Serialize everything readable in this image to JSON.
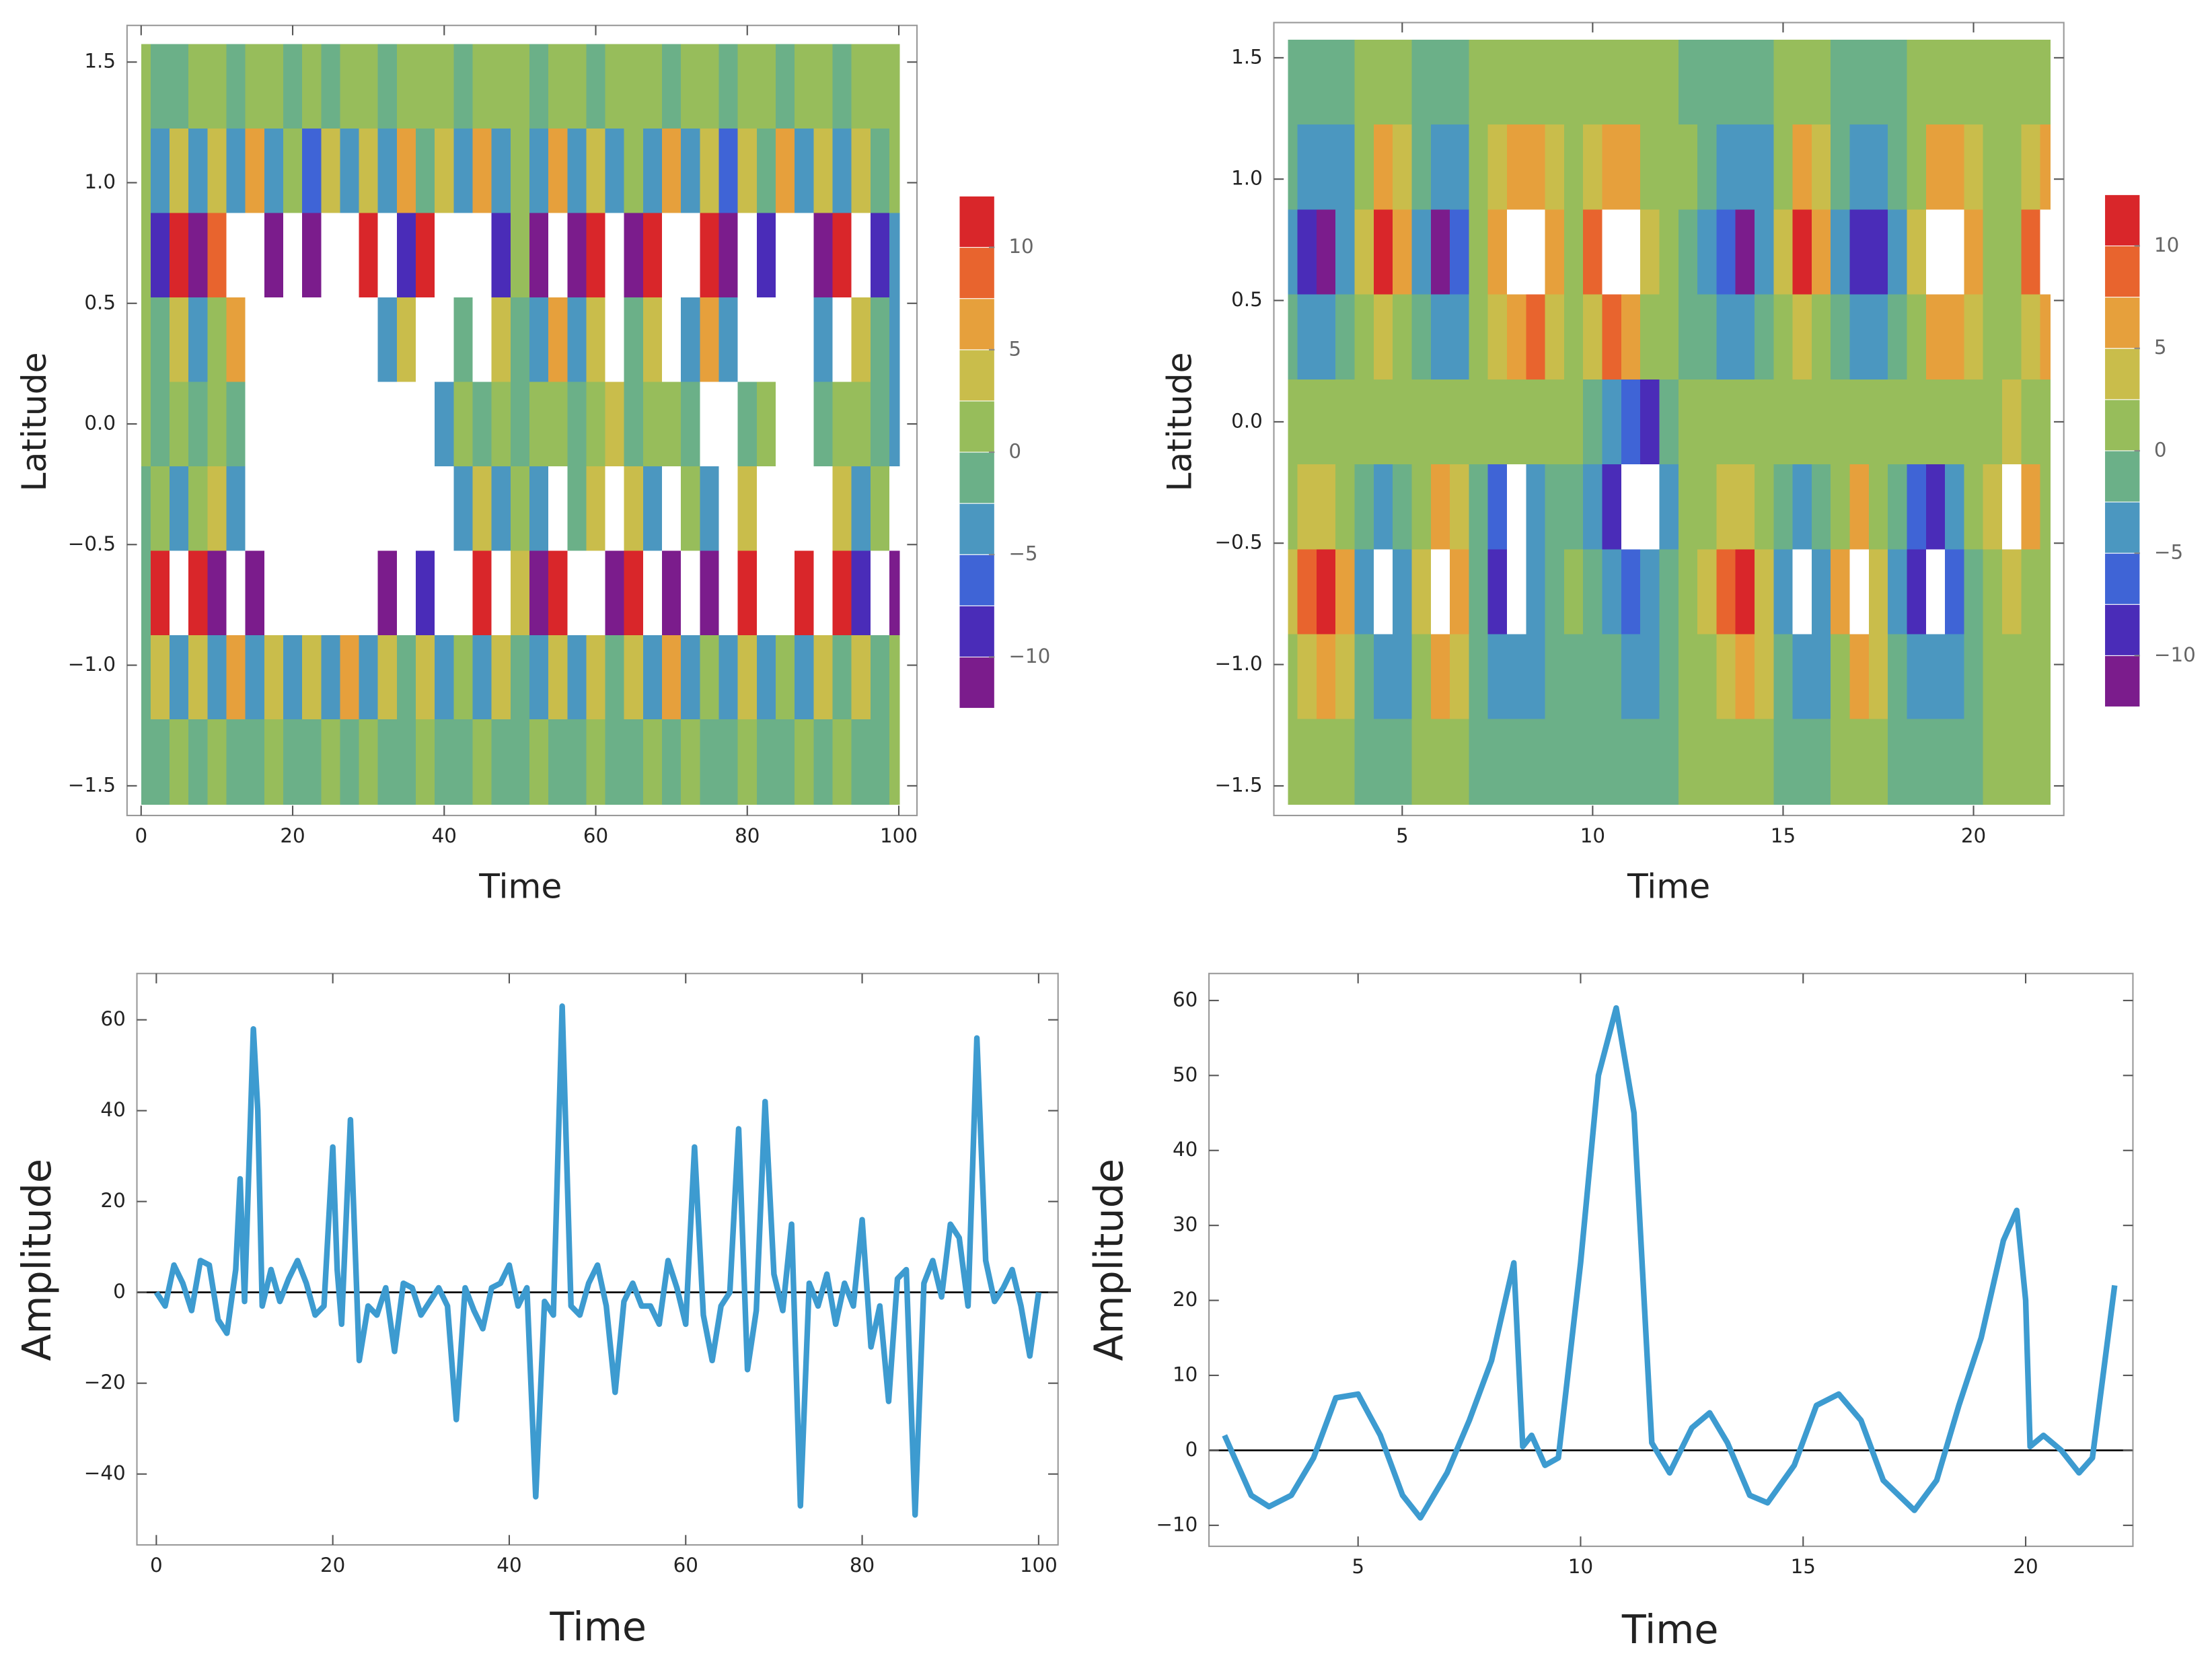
{
  "chart_data": [
    {
      "type": "contour",
      "x_label": "Time",
      "y_label": "Latitude",
      "xlim": [
        -1.86,
        102.4
      ],
      "ylim": [
        -1.623,
        1.652
      ],
      "xticks": [
        0,
        20,
        40,
        60,
        80,
        100
      ],
      "yticks": [
        {
          "value": -1.5,
          "label": "−1.5"
        },
        {
          "value": -1.0,
          "label": "−1.0"
        },
        {
          "value": -0.5,
          "label": "−0.5"
        },
        {
          "value": 0,
          "label": "0.0"
        },
        0.5,
        {
          "value": 1.0,
          "label": "1.0"
        },
        1.5
      ],
      "x": [
        0,
        2.5,
        5,
        7.5,
        10,
        12.5,
        15,
        17.5,
        20,
        22.5,
        25,
        27.5,
        30,
        32.5,
        35,
        37.5,
        40,
        42.5,
        45,
        47.5,
        50,
        52.5,
        55,
        57.5,
        60,
        62.5,
        65,
        67.5,
        70,
        72.5,
        75,
        77.5,
        80,
        82.5,
        85,
        87.5,
        90,
        92.5,
        95,
        97.5,
        100
      ],
      "y": [
        1.4,
        1.05,
        0.7,
        0.35,
        0,
        -0.35,
        -0.7,
        -1.05,
        -1.4
      ],
      "z": [
        [
          1,
          -1,
          -1,
          1,
          1,
          -1,
          1,
          1,
          -1,
          1,
          -1,
          1,
          1,
          -1,
          1,
          1,
          1,
          -1,
          1,
          1,
          1,
          -1,
          1,
          1,
          -1,
          1,
          1,
          1,
          -1,
          1,
          1,
          -1,
          1,
          1,
          -1,
          1,
          1,
          -1,
          1,
          1,
          1
        ],
        [
          1,
          -3,
          4,
          -5,
          3,
          -4,
          5,
          -3,
          2,
          -6,
          4,
          -4,
          3,
          -5,
          6,
          -2,
          3,
          -4,
          5,
          -3,
          1,
          -4,
          6,
          -3,
          4,
          -5,
          2,
          -3,
          5,
          -4,
          3,
          -6,
          4,
          -2,
          5,
          -3,
          4,
          -5,
          3,
          -2,
          1
        ],
        [
          1,
          -10,
          12,
          -12,
          9,
          14,
          14,
          -11,
          14,
          -12,
          13,
          -14,
          12,
          14,
          -9,
          12,
          14,
          -13,
          14,
          -10,
          2,
          -11,
          13,
          -12,
          11,
          14,
          -12,
          10,
          14,
          -13,
          12,
          -11,
          14,
          -10,
          13,
          14,
          -12,
          11,
          14,
          -10,
          -3
        ],
        [
          1,
          -2,
          4,
          -3,
          2,
          5,
          14,
          14,
          14,
          14,
          14,
          14,
          14,
          -3,
          4,
          14,
          14,
          -2,
          14,
          3,
          -1,
          -4,
          5,
          -3,
          4,
          14,
          -2,
          3,
          14,
          -4,
          5,
          -3,
          14,
          14,
          14,
          14,
          -3,
          14,
          4,
          -2,
          -5
        ],
        [
          0,
          -1,
          1,
          -1,
          2,
          -2,
          14,
          14,
          14,
          14,
          14,
          -14,
          -14,
          14,
          14,
          14,
          -3,
          1,
          -2,
          1,
          -1,
          1,
          2,
          -1,
          1,
          3,
          -2,
          1,
          2,
          -1,
          14,
          14,
          -2,
          1,
          14,
          14,
          -2,
          1,
          2,
          -1,
          -4
        ],
        [
          -1,
          2,
          -3,
          1,
          3,
          -4,
          14,
          14,
          14,
          14,
          14,
          14,
          -14,
          14,
          14,
          14,
          14,
          -5,
          3,
          -4,
          2,
          -3,
          14,
          -2,
          3,
          14,
          4,
          -3,
          14,
          2,
          -4,
          14,
          3,
          14,
          14,
          14,
          14,
          4,
          -3,
          2,
          -14
        ],
        [
          -1,
          12,
          -14,
          11,
          -12,
          14,
          -11,
          14,
          14,
          -13,
          14,
          14,
          14,
          -12,
          14,
          -10,
          14,
          -13,
          11,
          -14,
          3,
          -11,
          12,
          -14,
          14,
          -12,
          10,
          14,
          -12,
          14,
          -11,
          -14,
          12,
          14,
          -13,
          11,
          -14,
          12,
          -10,
          14,
          -12
        ],
        [
          -1,
          4,
          -5,
          3,
          -4,
          5,
          -3,
          4,
          -5,
          3,
          -4,
          5,
          -3,
          4,
          -2,
          3,
          -4,
          2,
          -3,
          4,
          -1,
          -3,
          4,
          -5,
          3,
          -2,
          4,
          -3,
          5,
          -4,
          2,
          -5,
          3,
          -4,
          2,
          -3,
          4,
          -2,
          3,
          -2,
          1
        ],
        [
          -1,
          -1,
          1,
          -1,
          1,
          -1,
          -1,
          1,
          -1,
          -1,
          1,
          -1,
          1,
          -1,
          -1,
          1,
          -1,
          -1,
          1,
          -1,
          -1,
          1,
          -1,
          -1,
          1,
          -1,
          -1,
          1,
          -1,
          1,
          -1,
          -1,
          1,
          -1,
          -1,
          1,
          -1,
          1,
          -1,
          -1,
          1
        ]
      ],
      "levels": [
        -12.5,
        -10,
        -7.5,
        -5,
        -2.5,
        0,
        2.5,
        5,
        7.5,
        10,
        12.5
      ],
      "colors": [
        "#7b1c8c",
        "#4a2cb8",
        "#3f64d6",
        "#4b97c0",
        "#6bb088",
        "#97bd5b",
        "#c9bd4b",
        "#e6a03c",
        "#e8642e",
        "#d9262a"
      ],
      "colorbar_ticks": [
        {
          "value": -10,
          "label": "−10"
        },
        {
          "value": -5,
          "label": "−5"
        },
        0,
        5,
        10
      ]
    },
    {
      "type": "contour",
      "x_label": "Time",
      "y_label": "Latitude",
      "xlim": [
        1.63,
        22.37
      ],
      "ylim": [
        -1.622,
        1.645
      ],
      "xticks": [
        5,
        10,
        15,
        20
      ],
      "yticks": [
        {
          "value": -1.5,
          "label": "−1.5"
        },
        {
          "value": -1.0,
          "label": "−1.0"
        },
        {
          "value": -0.5,
          "label": "−0.5"
        },
        {
          "value": 0,
          "label": "0.0"
        },
        0.5,
        {
          "value": 1.0,
          "label": "1.0"
        },
        1.5
      ],
      "x": [
        2,
        2.5,
        3,
        3.5,
        4,
        4.5,
        5,
        5.5,
        6,
        6.5,
        7,
        7.5,
        8,
        8.5,
        9,
        9.5,
        10,
        10.5,
        11,
        11.5,
        12,
        12.5,
        13,
        13.5,
        14,
        14.5,
        15,
        15.5,
        16,
        16.5,
        17,
        17.5,
        18,
        18.5,
        19,
        19.5,
        20,
        20.5,
        21,
        21.5,
        22
      ],
      "y": [
        1.4,
        1.05,
        0.7,
        0.35,
        0,
        -0.35,
        -0.7,
        -1.05,
        -1.4
      ],
      "z": [
        [
          -1,
          -1,
          -1,
          -1,
          1,
          1,
          1,
          -1,
          -1,
          -1,
          1,
          1,
          1,
          1,
          1,
          1,
          1,
          1,
          1,
          1,
          1,
          -1,
          -1,
          -1,
          -1,
          -1,
          1,
          1,
          1,
          -1,
          -1,
          -1,
          -1,
          1,
          1,
          1,
          1,
          1,
          1,
          1,
          1
        ],
        [
          -2,
          -4,
          -5,
          -3,
          2,
          5,
          3,
          -2,
          -5,
          -4,
          0,
          3,
          6,
          7,
          3,
          1,
          4,
          7,
          6,
          2,
          1,
          0,
          -2,
          -4,
          -5,
          -3,
          2,
          5,
          3,
          -2,
          -4,
          -5,
          -2,
          2,
          6,
          7,
          3,
          1,
          1,
          4,
          6
        ],
        [
          -3,
          -8,
          -11,
          -5,
          4,
          11,
          5,
          -3,
          -11,
          -7,
          0,
          6,
          13,
          14,
          5,
          1,
          8,
          14,
          13,
          4,
          1,
          -1,
          -4,
          -7,
          -11,
          -5,
          3,
          11,
          6,
          -3,
          -9,
          -10,
          -4,
          4,
          13,
          14,
          6,
          1,
          1,
          8,
          13
        ],
        [
          -1,
          -3,
          -4,
          -2,
          2,
          4,
          2,
          -1,
          -4,
          -3,
          0,
          3,
          6,
          8,
          3,
          1,
          4,
          8,
          6,
          2,
          0,
          -1,
          -2,
          -3,
          -4,
          -2,
          1,
          4,
          2,
          -1,
          -3,
          -4,
          -2,
          2,
          6,
          7,
          3,
          1,
          1,
          3,
          6
        ],
        [
          1,
          1,
          1,
          1,
          1,
          1,
          1,
          1,
          1,
          1,
          1,
          1,
          1,
          1,
          1,
          0,
          -1,
          -3,
          -6,
          -8,
          -2,
          1,
          1,
          1,
          1,
          1,
          1,
          1,
          1,
          1,
          1,
          1,
          1,
          1,
          1,
          1,
          1,
          2,
          3,
          2,
          1
        ],
        [
          1,
          3,
          4,
          2,
          -2,
          -5,
          -2,
          1,
          5,
          3,
          -1,
          -6,
          -13,
          -4,
          -1,
          -2,
          -5,
          -10,
          -14,
          -13,
          -3,
          1,
          2,
          3,
          4,
          2,
          -2,
          -5,
          -2,
          2,
          5,
          2,
          -2,
          -6,
          -9,
          -4,
          0,
          4,
          13,
          5,
          1
        ],
        [
          3,
          8,
          11,
          5,
          -4,
          -14,
          -5,
          3,
          13,
          6,
          -2,
          -10,
          -14,
          -5,
          -1,
          0,
          -2,
          -4,
          -7,
          -5,
          -1,
          1,
          4,
          8,
          11,
          4,
          -4,
          -14,
          -4,
          5,
          13,
          4,
          -4,
          -10,
          -14,
          -6,
          -1,
          1,
          3,
          1,
          0
        ],
        [
          2,
          4,
          5,
          3,
          -2,
          -5,
          -3,
          2,
          6,
          3,
          -1,
          -4,
          -5,
          -3,
          -1,
          -1,
          -1,
          -2,
          -3,
          -3,
          -1,
          1,
          2,
          4,
          5,
          3,
          -2,
          -5,
          -3,
          2,
          5,
          3,
          -2,
          -4,
          -5,
          -3,
          -1,
          1,
          2,
          1,
          0
        ],
        [
          1,
          1,
          1,
          1,
          -1,
          -1,
          -1,
          1,
          1,
          1,
          -1,
          -1,
          -1,
          -1,
          -1,
          -1,
          -1,
          -1,
          -1,
          -1,
          -1,
          1,
          1,
          1,
          1,
          1,
          -1,
          -1,
          -1,
          1,
          1,
          1,
          -1,
          -1,
          -1,
          -1,
          -1,
          1,
          1,
          1,
          1
        ]
      ],
      "levels": [
        -12.5,
        -10,
        -7.5,
        -5,
        -2.5,
        0,
        2.5,
        5,
        7.5,
        10,
        12.5
      ],
      "colors": [
        "#7b1c8c",
        "#4a2cb8",
        "#3f64d6",
        "#4b97c0",
        "#6bb088",
        "#97bd5b",
        "#c9bd4b",
        "#e6a03c",
        "#e8642e",
        "#d9262a"
      ],
      "colorbar_ticks": [
        {
          "value": -10,
          "label": "−10"
        },
        {
          "value": -5,
          "label": "−5"
        },
        0,
        5,
        10
      ]
    },
    {
      "type": "line",
      "x_label": "Time",
      "y_label": "Amplitude",
      "xlim": [
        -2.2,
        102.2
      ],
      "ylim": [
        -55.6,
        70.2
      ],
      "xticks": [
        0,
        20,
        40,
        60,
        80,
        100
      ],
      "yticks": [
        {
          "value": -40,
          "label": "−40"
        },
        {
          "value": -20,
          "label": "−20"
        },
        0,
        20,
        40,
        60
      ],
      "zero_line": true,
      "color": "#3d9bd0",
      "x": [
        0,
        1,
        2,
        3,
        4,
        5,
        6,
        7,
        8,
        9,
        9.5,
        10,
        11,
        11.5,
        12,
        13,
        14,
        15,
        16,
        17,
        18,
        19,
        20,
        20.5,
        21,
        22,
        23,
        24,
        25,
        26,
        27,
        28,
        29,
        30,
        31,
        32,
        33,
        34,
        35,
        36,
        37,
        38,
        39,
        40,
        41,
        42,
        43,
        44,
        45,
        46,
        47,
        48,
        49,
        50,
        51,
        52,
        53,
        54,
        55,
        56,
        57,
        58,
        59,
        60,
        61,
        62,
        63,
        64,
        65,
        66,
        67,
        68,
        69,
        70,
        71,
        72,
        73,
        74,
        75,
        76,
        77,
        78,
        79,
        80,
        81,
        82,
        83,
        84,
        85,
        86,
        87,
        88,
        89,
        90,
        91,
        92,
        93,
        94,
        95,
        96,
        97,
        98,
        99,
        100
      ],
      "values": [
        0,
        -3,
        6,
        2,
        -4,
        7,
        6,
        -6,
        -9,
        5,
        25,
        -2,
        58,
        40,
        -3,
        5,
        -2,
        3,
        7,
        2,
        -5,
        -3,
        32,
        5,
        -7,
        38,
        -15,
        -3,
        -5,
        1,
        -13,
        2,
        1,
        -5,
        -2,
        1,
        -3,
        -28,
        1,
        -4,
        -8,
        1,
        2,
        6,
        -3,
        1,
        -45,
        -2,
        -5,
        63,
        -3,
        -5,
        2,
        6,
        -3,
        -22,
        -2,
        2,
        -3,
        -3,
        -7,
        7,
        1,
        -7,
        32,
        -5,
        -15,
        -3,
        0,
        36,
        -17,
        -4,
        42,
        4,
        -4,
        15,
        -47,
        2,
        -3,
        4,
        -7,
        2,
        -3,
        16,
        -12,
        -3,
        -24,
        3,
        5,
        -49,
        2,
        7,
        -1,
        15,
        12,
        -3,
        56,
        7,
        -2,
        1,
        5,
        -3,
        -14,
        0
      ]
    },
    {
      "type": "line",
      "x_label": "Time",
      "y_label": "Amplitude",
      "xlim": [
        1.65,
        22.41
      ],
      "ylim": [
        -12.8,
        63.6
      ],
      "xticks": [
        5,
        10,
        15,
        20
      ],
      "yticks": [
        {
          "value": -10,
          "label": "−10"
        },
        0,
        10,
        20,
        30,
        40,
        50,
        60
      ],
      "zero_line": true,
      "color": "#3d9bd0",
      "x": [
        2,
        2.3,
        2.6,
        3,
        3.5,
        4,
        4.5,
        5,
        5.5,
        6,
        6.4,
        7,
        7.5,
        8,
        8.5,
        8.7,
        8.9,
        9.2,
        9.5,
        10,
        10.4,
        10.8,
        11.2,
        11.6,
        12,
        12.5,
        12.9,
        13.3,
        13.8,
        14.2,
        14.8,
        15.3,
        15.8,
        16.3,
        16.8,
        17.5,
        18,
        18.5,
        19,
        19.5,
        19.8,
        20,
        20.1,
        20.4,
        20.8,
        21.2,
        21.5,
        22
      ],
      "values": [
        2,
        -2,
        -6,
        -7.5,
        -6,
        -1,
        7,
        7.5,
        2,
        -6,
        -9,
        -3,
        4,
        12,
        25,
        0.5,
        2,
        -2,
        -1,
        25,
        50,
        59,
        45,
        1,
        -3,
        3,
        5,
        1,
        -6,
        -7,
        -2,
        6,
        7.5,
        4,
        -4,
        -8,
        -4,
        6,
        15,
        28,
        32,
        20,
        0.5,
        2,
        0,
        -3,
        -1,
        22
      ]
    }
  ]
}
